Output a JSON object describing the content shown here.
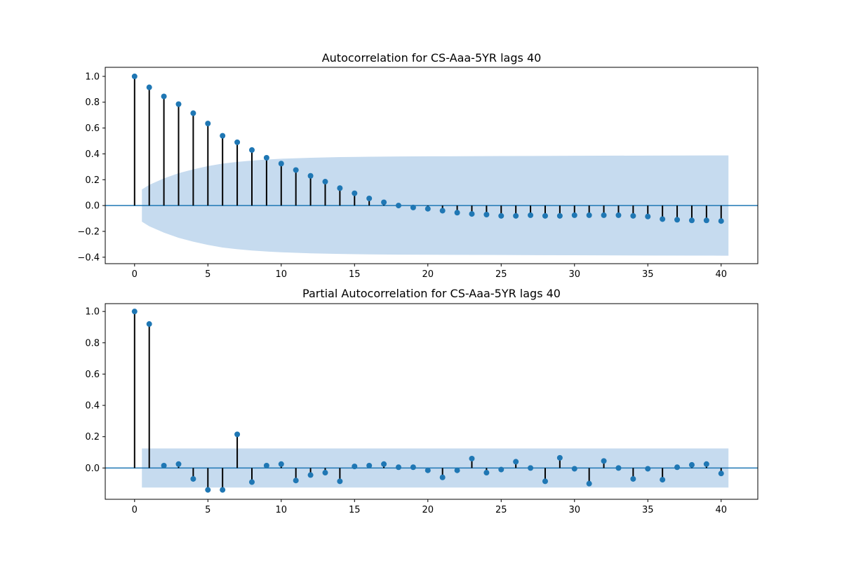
{
  "chart_data": [
    {
      "type": "stem",
      "title": "Autocorrelation for CS-Aaa-5YR lags 40",
      "xlim": [
        -2,
        42.5
      ],
      "ylim": [
        -0.45,
        1.07
      ],
      "xticks": [
        0,
        5,
        10,
        15,
        20,
        25,
        30,
        35,
        40
      ],
      "yticks": [
        -0.4,
        -0.2,
        0.0,
        0.2,
        0.4,
        0.6,
        0.8,
        1.0
      ],
      "x": [
        0,
        1,
        2,
        3,
        4,
        5,
        6,
        7,
        8,
        9,
        10,
        11,
        12,
        13,
        14,
        15,
        16,
        17,
        18,
        19,
        20,
        21,
        22,
        23,
        24,
        25,
        26,
        27,
        28,
        29,
        30,
        31,
        32,
        33,
        34,
        35,
        36,
        37,
        38,
        39,
        40
      ],
      "values": [
        1.0,
        0.915,
        0.845,
        0.785,
        0.715,
        0.635,
        0.54,
        0.49,
        0.43,
        0.37,
        0.325,
        0.275,
        0.23,
        0.185,
        0.135,
        0.095,
        0.055,
        0.025,
        0.0,
        -0.015,
        -0.025,
        -0.04,
        -0.055,
        -0.065,
        -0.07,
        -0.08,
        -0.08,
        -0.075,
        -0.08,
        -0.08,
        -0.075,
        -0.075,
        -0.075,
        -0.075,
        -0.08,
        -0.085,
        -0.105,
        -0.11,
        -0.115,
        -0.115,
        -0.12
      ],
      "confidence_band": {
        "x": [
          0.5,
          1,
          2,
          3,
          4,
          5,
          6,
          7,
          8,
          9,
          10,
          12,
          14,
          16,
          18,
          20,
          25,
          30,
          35,
          40,
          40.5
        ],
        "upper": [
          0.125,
          0.16,
          0.21,
          0.25,
          0.28,
          0.305,
          0.325,
          0.338,
          0.348,
          0.356,
          0.362,
          0.37,
          0.375,
          0.378,
          0.38,
          0.381,
          0.383,
          0.385,
          0.387,
          0.388,
          0.388
        ]
      },
      "colors": {
        "marker": "#1f77b4",
        "stem": "#000000",
        "band": "#c6dbef",
        "baseline": "#1f77b4"
      }
    },
    {
      "type": "stem",
      "title": "Partial Autocorrelation for CS-Aaa-5YR lags 40",
      "xlim": [
        -2,
        42.5
      ],
      "ylim": [
        -0.2,
        1.05
      ],
      "xticks": [
        0,
        5,
        10,
        15,
        20,
        25,
        30,
        35,
        40
      ],
      "yticks": [
        0.0,
        0.2,
        0.4,
        0.6,
        0.8,
        1.0
      ],
      "x": [
        0,
        1,
        2,
        3,
        4,
        5,
        6,
        7,
        8,
        9,
        10,
        11,
        12,
        13,
        14,
        15,
        16,
        17,
        18,
        19,
        20,
        21,
        22,
        23,
        24,
        25,
        26,
        27,
        28,
        29,
        30,
        31,
        32,
        33,
        34,
        35,
        36,
        37,
        38,
        39,
        40
      ],
      "values": [
        1.0,
        0.92,
        0.015,
        0.025,
        -0.07,
        -0.14,
        -0.14,
        0.215,
        -0.09,
        0.015,
        0.025,
        -0.08,
        -0.045,
        -0.03,
        -0.085,
        0.01,
        0.015,
        0.025,
        0.005,
        0.005,
        -0.015,
        -0.06,
        -0.015,
        0.06,
        -0.03,
        -0.01,
        0.04,
        0.0,
        -0.085,
        0.065,
        -0.005,
        -0.1,
        0.045,
        0.0,
        -0.07,
        -0.005,
        -0.075,
        0.005,
        0.02,
        0.025,
        -0.035
      ],
      "confidence_band": {
        "x": [
          0.5,
          40.5
        ],
        "upper": [
          0.125,
          0.125
        ]
      },
      "colors": {
        "marker": "#1f77b4",
        "stem": "#000000",
        "band": "#c6dbef",
        "baseline": "#1f77b4"
      }
    }
  ]
}
